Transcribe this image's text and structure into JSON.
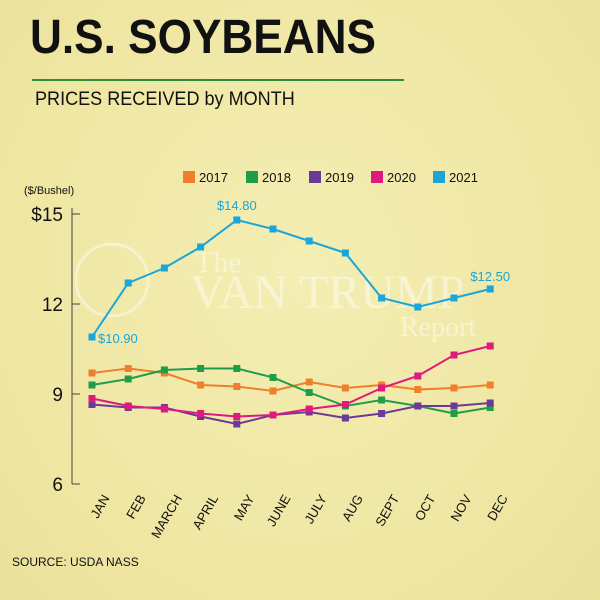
{
  "title": "U.S. SOYBEANS",
  "subtitle": "PRICES RECEIVED by MONTH",
  "source": "SOURCE: USDA NASS",
  "watermark": {
    "line1": "The",
    "line2": "VAN TRUMP",
    "line3": "Report"
  },
  "colors": {
    "2017": "#f07f2c",
    "2018": "#1f9e48",
    "2019": "#6b3a98",
    "2020": "#e0197d",
    "2021": "#1aa6d8"
  },
  "chart_data": {
    "type": "line",
    "ylabel": "($/Bushel)",
    "ylim": [
      6,
      15
    ],
    "yticks": [
      {
        "value": 15,
        "label": "$15"
      },
      {
        "value": 12,
        "label": "12"
      },
      {
        "value": 9,
        "label": "9"
      },
      {
        "value": 6,
        "label": "6"
      }
    ],
    "categories": [
      "JAN",
      "FEB",
      "MARCH",
      "APRIL",
      "MAY",
      "JUNE",
      "JULY",
      "AUG",
      "SEPT",
      "OCT",
      "NOV",
      "DEC"
    ],
    "legend_position": "top",
    "series": [
      {
        "name": "2017",
        "values": [
          9.7,
          9.85,
          9.7,
          9.3,
          9.25,
          9.1,
          9.4,
          9.2,
          9.3,
          9.15,
          9.2,
          9.3
        ]
      },
      {
        "name": "2018",
        "values": [
          9.3,
          9.5,
          9.8,
          9.85,
          9.85,
          9.55,
          9.05,
          8.6,
          8.8,
          8.6,
          8.35,
          8.55
        ]
      },
      {
        "name": "2019",
        "values": [
          8.65,
          8.55,
          8.55,
          8.25,
          8.0,
          8.3,
          8.4,
          8.2,
          8.35,
          8.6,
          8.6,
          8.7
        ]
      },
      {
        "name": "2020",
        "values": [
          8.85,
          8.6,
          8.5,
          8.35,
          8.25,
          8.3,
          8.5,
          8.65,
          9.2,
          9.6,
          10.3,
          10.6
        ]
      },
      {
        "name": "2021",
        "values": [
          10.9,
          12.7,
          13.2,
          13.9,
          14.8,
          14.5,
          14.1,
          13.7,
          12.2,
          11.9,
          12.2,
          12.5
        ]
      }
    ],
    "annotations": [
      {
        "series": "2021",
        "index": 0,
        "text": "$10.90"
      },
      {
        "series": "2021",
        "index": 4,
        "text": "$14.80"
      },
      {
        "series": "2021",
        "index": 11,
        "text": "$12.50"
      }
    ]
  }
}
